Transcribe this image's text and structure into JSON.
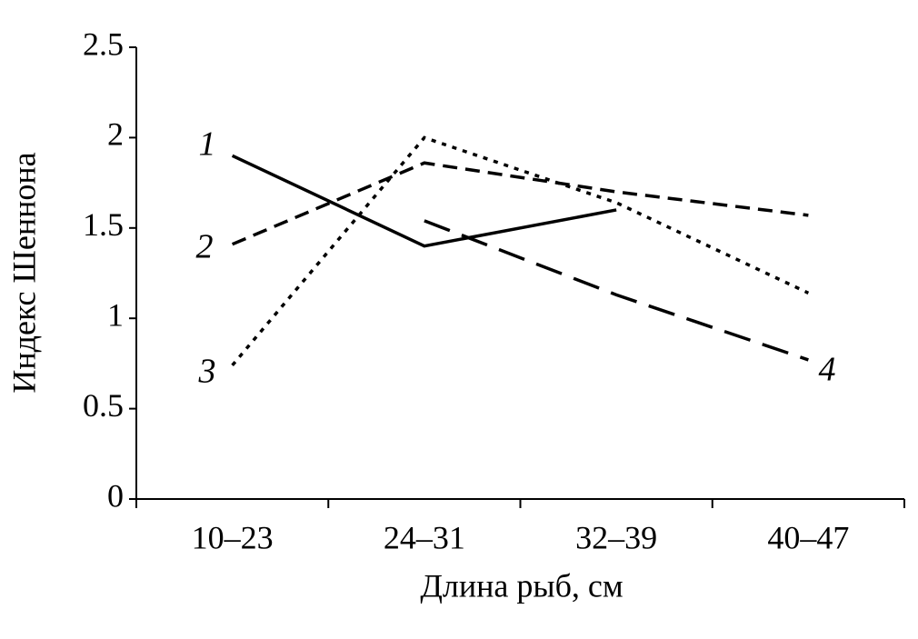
{
  "chart_data": {
    "type": "line",
    "xlabel": "Длина рыб, см",
    "ylabel": "Индекс Шеннона",
    "categories": [
      "10–23",
      "24–31",
      "32–39",
      "40–47"
    ],
    "series": [
      {
        "name": "1",
        "color": "#000000",
        "values": [
          1.9,
          1.4,
          1.6,
          null
        ]
      },
      {
        "name": "2",
        "color": "#000000",
        "values": [
          1.41,
          1.86,
          1.7,
          1.57
        ]
      },
      {
        "name": "3",
        "color": "#000000",
        "values": [
          0.74,
          2.0,
          1.64,
          1.14
        ]
      },
      {
        "name": "4",
        "color": "#000000",
        "values": [
          null,
          1.54,
          1.13,
          0.77
        ]
      }
    ],
    "ylim": [
      0,
      2.5
    ],
    "yticks": [
      0,
      0.5,
      1,
      1.5,
      2,
      2.5
    ]
  }
}
